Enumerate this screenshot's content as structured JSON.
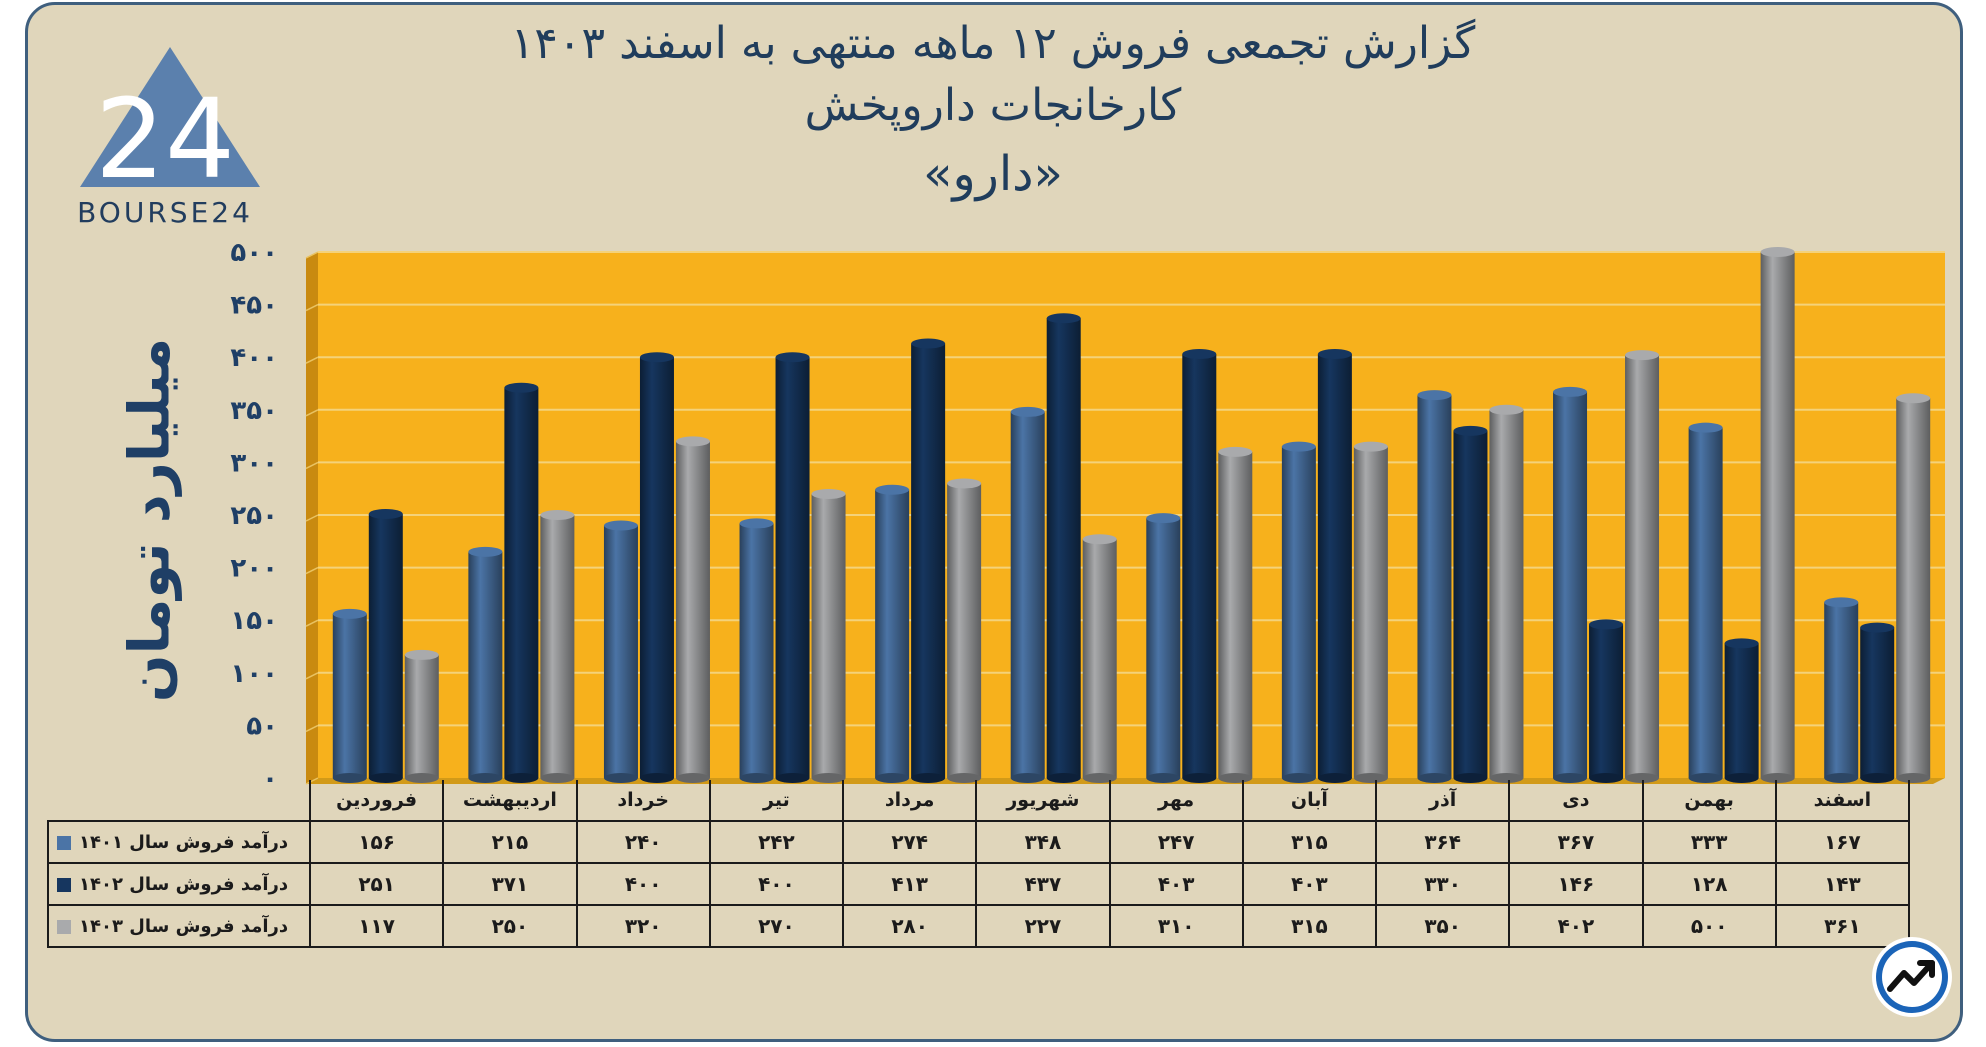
{
  "title": {
    "line1": "گزارش تجمعی فروش ۱۲ ماهه منتهی به اسفند ۱۴۰۳",
    "line2": "کارخانجات داروپخش",
    "line3": "«دارو»"
  },
  "logo": {
    "text": "BOURSE24",
    "numeral": "24"
  },
  "colors": {
    "plot_bg": "#f7b11c",
    "grid": "#f4d27a",
    "series_1401": "#4b74a6",
    "series_1402": "#16365f",
    "series_1403": "#a9aaac",
    "card_bg": "#e0d6bb",
    "text_dark": "#1f3f66"
  },
  "chart_data": {
    "type": "bar",
    "ylabel": "میلیارد تومان",
    "ylim": [
      0,
      500
    ],
    "yticks": [
      "۰",
      "۵۰",
      "۱۰۰",
      "۱۵۰",
      "۲۰۰",
      "۲۵۰",
      "۳۰۰",
      "۳۵۰",
      "۴۰۰",
      "۴۵۰",
      "۵۰۰"
    ],
    "ytick_values": [
      0,
      50,
      100,
      150,
      200,
      250,
      300,
      350,
      400,
      450,
      500
    ],
    "grid": true,
    "categories": [
      "فروردین",
      "اردیبهشت",
      "خرداد",
      "تیر",
      "مرداد",
      "شهریور",
      "مهر",
      "آبان",
      "آذر",
      "دی",
      "بهمن",
      "اسفند"
    ],
    "series": [
      {
        "name": "درآمد فروش سال ۱۴۰۱",
        "values": [
          156,
          215,
          240,
          242,
          274,
          348,
          247,
          315,
          364,
          367,
          333,
          167
        ],
        "labels": [
          "۱۵۶",
          "۲۱۵",
          "۲۴۰",
          "۲۴۲",
          "۲۷۴",
          "۳۴۸",
          "۲۴۷",
          "۳۱۵",
          "۳۶۴",
          "۳۶۷",
          "۳۳۳",
          "۱۶۷"
        ]
      },
      {
        "name": "درآمد فروش سال ۱۴۰۲",
        "values": [
          251,
          371,
          400,
          400,
          413,
          437,
          403,
          403,
          330,
          146,
          128,
          143
        ],
        "labels": [
          "۲۵۱",
          "۳۷۱",
          "۴۰۰",
          "۴۰۰",
          "۴۱۳",
          "۴۳۷",
          "۴۰۳",
          "۴۰۳",
          "۳۳۰",
          "۱۴۶",
          "۱۲۸",
          "۱۴۳"
        ]
      },
      {
        "name": "درآمد فروش سال ۱۴۰۳",
        "values": [
          117,
          250,
          320,
          270,
          280,
          227,
          310,
          315,
          350,
          402,
          500,
          361
        ],
        "labels": [
          "۱۱۷",
          "۲۵۰",
          "۳۲۰",
          "۲۷۰",
          "۲۸۰",
          "۲۲۷",
          "۳۱۰",
          "۳۱۵",
          "۳۵۰",
          "۴۰۲",
          "۵۰۰",
          "۳۶۱"
        ]
      }
    ]
  }
}
